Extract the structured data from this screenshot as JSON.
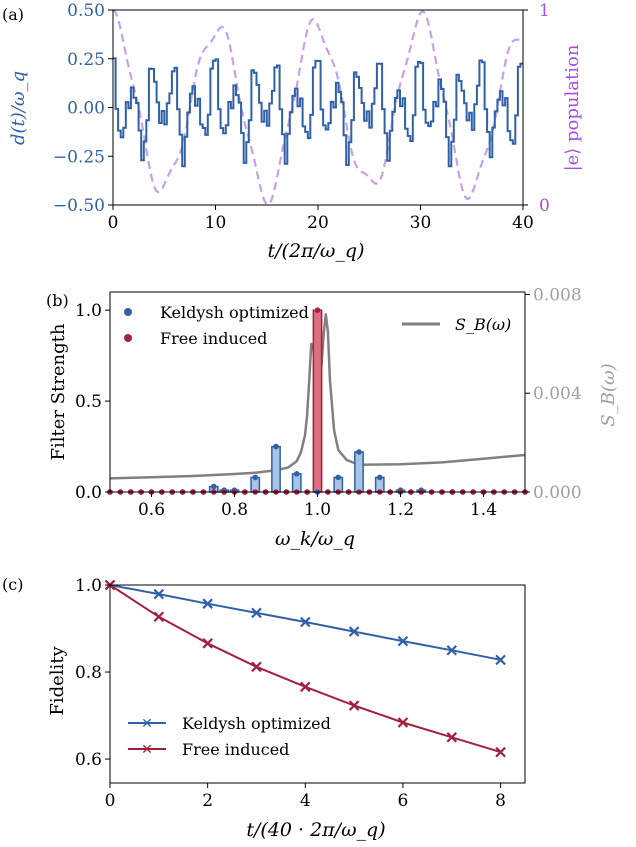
{
  "colors": {
    "blue": "#3060a8",
    "blue_fill": "#a9c4e6",
    "red": "#a3213f",
    "red_fill": "#dd6f83",
    "purple": "#c9a0e8",
    "purple_text": "#a84ee0",
    "gray": "#808080",
    "gray_text": "#a0a0a0",
    "axis": "#000000"
  },
  "chart_data": [
    {
      "panel": "(a)",
      "type": "line",
      "xlabel": "t/(2π/ω_q)",
      "ylabel": "d(t)/ω_q",
      "y2label": "|e⟩ population",
      "xlim": [
        0,
        40
      ],
      "ylim": [
        -0.5,
        0.5
      ],
      "y2lim": [
        0,
        1
      ],
      "xticks": [
        "0",
        "10",
        "20",
        "30",
        "40"
      ],
      "yticks": [
        "−0.50",
        "−0.25",
        "0.00",
        "0.25",
        "0.50"
      ],
      "y2ticks": [
        "0",
        "1"
      ],
      "series": [
        {
          "style": "step",
          "color": "blue",
          "drive_amplitude": 0.28,
          "period": 2,
          "step_width": 0.25
        },
        {
          "style": "dashed",
          "color": "purple",
          "axis": "right",
          "population_period": 10,
          "modulation_period": 3.8
        }
      ]
    },
    {
      "panel": "(b)",
      "type": "bar",
      "xlabel": "ω_k/ω_q",
      "ylabel": "Filter Strength",
      "y2label": "S_B(ω)",
      "xlim": [
        0.5,
        1.5
      ],
      "ylim": [
        0,
        1.1
      ],
      "y2lim": [
        0,
        0.0081
      ],
      "xticks": [
        "0.6",
        "0.8",
        "1.0",
        "1.2",
        "1.4"
      ],
      "yticks": [
        "0.0",
        "0.5",
        "1.0"
      ],
      "y2ticks": [
        "0.000",
        "0.004",
        "0.008"
      ],
      "bar_width": 0.02,
      "series": [
        {
          "name": "Keldysh optimized",
          "color": "blue",
          "x": [
            0.5,
            0.525,
            0.55,
            0.575,
            0.6,
            0.625,
            0.65,
            0.675,
            0.7,
            0.725,
            0.75,
            0.775,
            0.8,
            0.825,
            0.85,
            0.875,
            0.9,
            0.925,
            0.95,
            0.975,
            1.0,
            1.025,
            1.05,
            1.075,
            1.1,
            1.125,
            1.15,
            1.175,
            1.2,
            1.225,
            1.25,
            1.275,
            1.3,
            1.325,
            1.35,
            1.375,
            1.4,
            1.425,
            1.45,
            1.475,
            1.5
          ],
          "values": [
            0,
            0,
            0,
            0,
            0,
            0,
            0,
            0,
            0,
            0,
            0.03,
            0.01,
            0.01,
            0,
            0.08,
            0,
            0.25,
            0,
            0.1,
            0,
            0,
            0,
            0.08,
            0,
            0.22,
            0,
            0.08,
            0,
            0.01,
            0,
            0.01,
            0,
            0,
            0,
            0,
            0,
            0,
            0,
            0,
            0,
            0
          ]
        },
        {
          "name": "Free induced",
          "color": "red",
          "x": [
            0.5,
            0.525,
            0.55,
            0.575,
            0.6,
            0.625,
            0.65,
            0.675,
            0.7,
            0.725,
            0.75,
            0.775,
            0.8,
            0.825,
            0.85,
            0.875,
            0.9,
            0.925,
            0.95,
            0.975,
            1.0,
            1.025,
            1.05,
            1.075,
            1.1,
            1.125,
            1.15,
            1.175,
            1.2,
            1.225,
            1.25,
            1.275,
            1.3,
            1.325,
            1.35,
            1.375,
            1.4,
            1.425,
            1.45,
            1.475,
            1.5
          ],
          "values": [
            0,
            0,
            0,
            0,
            0,
            0,
            0,
            0,
            0,
            0,
            0,
            0,
            0,
            0,
            0,
            0,
            0,
            0,
            0,
            0,
            1.0,
            0,
            0,
            0,
            0,
            0,
            0,
            0,
            0,
            0,
            0,
            0,
            0,
            0,
            0,
            0,
            0,
            0,
            0,
            0,
            0
          ]
        },
        {
          "name": "S_B(ω)",
          "color": "gray",
          "axis": "right",
          "x": [
            0.5,
            0.6,
            0.7,
            0.8,
            0.85,
            0.9,
            0.93,
            0.95,
            0.96,
            0.97,
            0.975,
            0.98,
            0.985,
            0.99,
            0.995,
            1.0,
            1.005,
            1.01,
            1.015,
            1.02,
            1.025,
            1.03,
            1.04,
            1.05,
            1.07,
            1.1,
            1.2,
            1.3,
            1.4,
            1.5
          ],
          "values": [
            0.00055,
            0.0006,
            0.00065,
            0.00073,
            0.00078,
            0.00088,
            0.001,
            0.00125,
            0.0016,
            0.0023,
            0.0031,
            0.0045,
            0.006,
            0.0058,
            0.0048,
            0.0044,
            0.0045,
            0.0052,
            0.0064,
            0.0072,
            0.0065,
            0.0045,
            0.0025,
            0.0017,
            0.0013,
            0.0011,
            0.00112,
            0.0012,
            0.00135,
            0.0015
          ]
        }
      ],
      "legend_placement": "top-left and top-right"
    },
    {
      "panel": "(c)",
      "type": "line",
      "xlabel": "t/(40 · 2π/ω_q)",
      "ylabel": "Fidelity",
      "xlim": [
        0,
        8.5
      ],
      "ylim": [
        0.545,
        1.0
      ],
      "xticks": [
        "0",
        "2",
        "4",
        "6",
        "8"
      ],
      "yticks": [
        "0.6",
        "0.8",
        "1.0"
      ],
      "x": [
        0,
        1,
        2,
        3,
        4,
        5,
        6,
        7,
        8
      ],
      "series": [
        {
          "name": "Keldysh optimized",
          "color": "blue",
          "values": [
            1.0,
            0.979,
            0.957,
            0.936,
            0.915,
            0.893,
            0.871,
            0.85,
            0.828
          ]
        },
        {
          "name": "Free induced",
          "color": "red",
          "values": [
            1.0,
            0.927,
            0.866,
            0.812,
            0.766,
            0.723,
            0.684,
            0.65,
            0.616
          ]
        }
      ],
      "legend_placement": "lower-left"
    }
  ]
}
